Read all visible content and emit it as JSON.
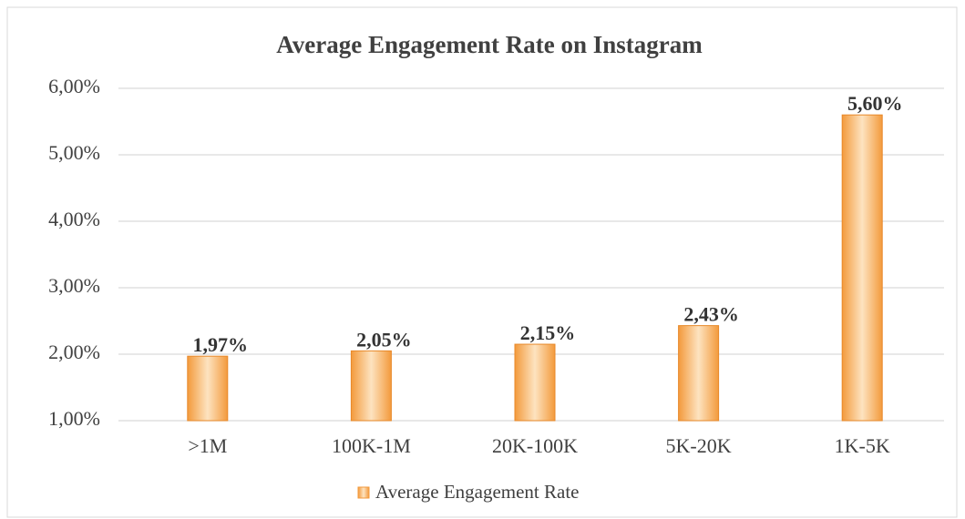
{
  "chart_data": {
    "type": "bar",
    "title": "Average Engagement Rate on Instagram",
    "categories": [
      ">1M",
      "100K-1M",
      "20K-100K",
      "5K-20K",
      "1K-5K"
    ],
    "series": [
      {
        "name": "Average Engagement Rate",
        "color": "#f39a3c",
        "values": [
          1.97,
          2.05,
          2.15,
          2.43,
          5.6
        ],
        "value_labels": [
          "1,97%",
          "2,05%",
          "2,15%",
          "2,43%",
          "5,60%"
        ]
      }
    ],
    "ylim": [
      1,
      6
    ],
    "yticks": [
      {
        "value": 1,
        "label": "1,00%"
      },
      {
        "value": 2,
        "label": "2,00%"
      },
      {
        "value": 3,
        "label": "3,00%"
      },
      {
        "value": 4,
        "label": "4,00%"
      },
      {
        "value": 5,
        "label": "5,00%"
      },
      {
        "value": 6,
        "label": "6,00%"
      }
    ],
    "grid": true,
    "legend": "bottom"
  }
}
